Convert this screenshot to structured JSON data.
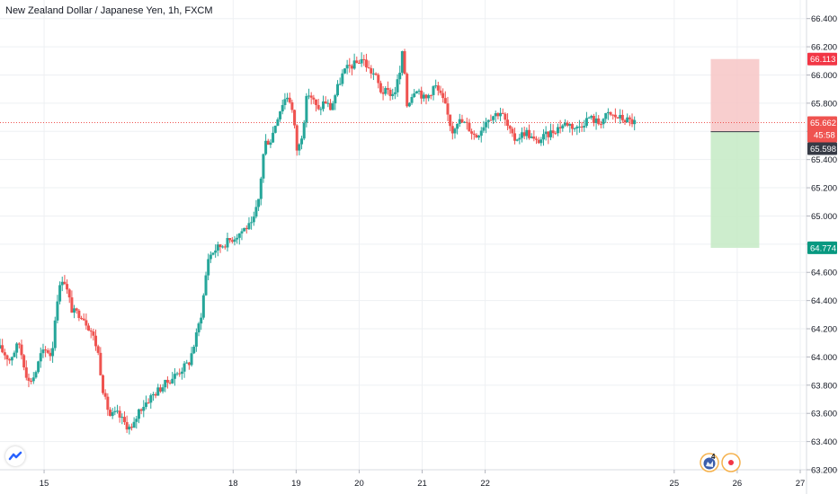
{
  "header": {
    "title": "New Zealand Dollar / Japanese Yen, 1h, FXCM"
  },
  "colors": {
    "bull": "#26a69a",
    "bear": "#ef5350",
    "grid": "#eef0f3",
    "stop_zone": "#f7c5c5",
    "target_zone": "#c8ebc8",
    "stop_tag": "#f23645",
    "target_tag": "#089981",
    "price_tag": "#ef5350",
    "entry_tag": "#363a45"
  },
  "icons": {
    "logo": "tradingview-logo-icon",
    "events": [
      "earnings-flag-icon",
      "dividend-dot-icon"
    ]
  },
  "event_badge": "4",
  "chart_data": {
    "type": "candlestick",
    "symbol": "New Zealand Dollar / Japanese Yen",
    "interval": "1h",
    "source": "FXCM",
    "y_range": [
      63.2,
      66.5
    ],
    "y_ticks": [
      63.2,
      63.4,
      63.6,
      63.8,
      64.0,
      64.2,
      64.4,
      64.6,
      64.8,
      65.0,
      65.2,
      65.4,
      65.6,
      65.8,
      66.0,
      66.2,
      66.4
    ],
    "y_tick_labels": [
      "63.200",
      "63.400",
      "63.600",
      "63.800",
      "64.000",
      "64.200",
      "64.400",
      "64.600",
      "64.800",
      "65.000",
      "65.200",
      "65.400",
      "65.600",
      "65.800",
      "66.000",
      "66.200",
      "66.400"
    ],
    "x_ticks": [
      "15",
      "18",
      "19",
      "20",
      "21",
      "22",
      "25",
      "26",
      "27"
    ],
    "x_tick_positions": [
      15,
      18,
      19,
      20,
      21,
      22,
      25,
      26,
      27
    ],
    "x_range": [
      14.3,
      27.1
    ],
    "position": {
      "entry": 65.598,
      "stop": 66.113,
      "target": 64.774,
      "from": 25.58,
      "to": 26.35
    },
    "current_price": 65.662,
    "countdown": "45:58",
    "price_labels": {
      "stop": "66.113",
      "current": "65.662",
      "countdown": "45:58",
      "entry": "65.598",
      "target": "64.774"
    },
    "path": [
      [
        14.3,
        64.06
      ],
      [
        14.45,
        63.98
      ],
      [
        14.6,
        64.1
      ],
      [
        14.75,
        63.82
      ],
      [
        14.85,
        63.87
      ],
      [
        14.95,
        64.02
      ],
      [
        15.05,
        64.05
      ],
      [
        15.12,
        64.0
      ],
      [
        15.2,
        64.4
      ],
      [
        15.3,
        64.58
      ],
      [
        15.45,
        64.32
      ],
      [
        15.6,
        64.3
      ],
      [
        15.75,
        64.18
      ],
      [
        15.85,
        64.05
      ],
      [
        15.95,
        63.72
      ],
      [
        16.05,
        63.58
      ],
      [
        16.15,
        63.6
      ],
      [
        16.3,
        63.52
      ],
      [
        16.4,
        63.48
      ],
      [
        16.5,
        63.62
      ],
      [
        16.7,
        63.72
      ],
      [
        16.9,
        63.8
      ],
      [
        17.1,
        63.88
      ],
      [
        17.3,
        63.96
      ],
      [
        17.4,
        64.12
      ],
      [
        17.5,
        64.32
      ],
      [
        17.6,
        64.7
      ],
      [
        17.7,
        64.76
      ],
      [
        17.85,
        64.8
      ],
      [
        18.05,
        64.86
      ],
      [
        18.2,
        64.92
      ],
      [
        18.3,
        64.93
      ],
      [
        18.4,
        65.1
      ],
      [
        18.5,
        65.52
      ],
      [
        18.6,
        65.54
      ],
      [
        18.7,
        65.7
      ],
      [
        18.8,
        65.82
      ],
      [
        18.88,
        65.86
      ],
      [
        18.95,
        65.72
      ],
      [
        19.02,
        65.44
      ],
      [
        19.1,
        65.6
      ],
      [
        19.18,
        65.88
      ],
      [
        19.25,
        65.84
      ],
      [
        19.35,
        65.74
      ],
      [
        19.45,
        65.82
      ],
      [
        19.55,
        65.76
      ],
      [
        19.65,
        65.9
      ],
      [
        19.75,
        66.02
      ],
      [
        19.85,
        66.06
      ],
      [
        19.95,
        66.08
      ],
      [
        20.05,
        66.12
      ],
      [
        20.15,
        66.04
      ],
      [
        20.25,
        66.0
      ],
      [
        20.35,
        65.88
      ],
      [
        20.45,
        65.88
      ],
      [
        20.55,
        65.86
      ],
      [
        20.65,
        66.02
      ],
      [
        20.7,
        66.2
      ],
      [
        20.75,
        65.78
      ],
      [
        20.9,
        65.92
      ],
      [
        21.05,
        65.82
      ],
      [
        21.2,
        65.93
      ],
      [
        21.35,
        65.8
      ],
      [
        21.48,
        65.6
      ],
      [
        21.55,
        65.68
      ],
      [
        21.7,
        65.65
      ],
      [
        21.85,
        65.56
      ],
      [
        22.05,
        65.7
      ],
      [
        22.25,
        65.74
      ],
      [
        22.45,
        65.54
      ],
      [
        22.65,
        65.6
      ],
      [
        22.8,
        65.52
      ],
      [
        23.0,
        65.58
      ],
      [
        23.2,
        65.64
      ],
      [
        23.3,
        65.66
      ],
      [
        23.45,
        65.62
      ],
      [
        23.65,
        65.7
      ],
      [
        23.8,
        65.66
      ],
      [
        23.95,
        65.72
      ],
      [
        24.1,
        65.7
      ],
      [
        24.25,
        65.68
      ],
      [
        24.4,
        65.66
      ]
    ]
  }
}
